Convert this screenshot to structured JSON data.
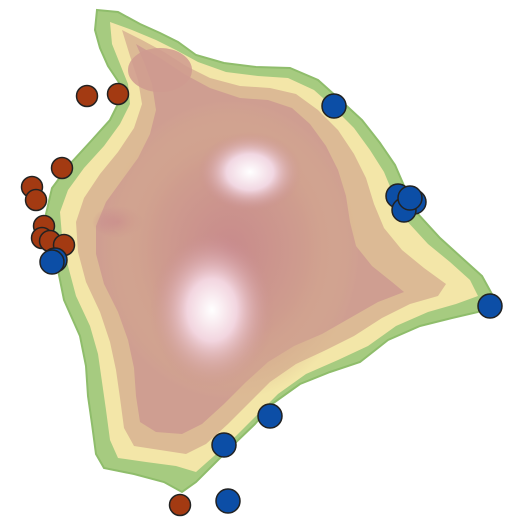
{
  "map": {
    "type": "elevation-map",
    "land_colors": {
      "coast_green": "#9cc57a",
      "low_yellow": "#f4e7a6",
      "mid_tan": "#d7b28d",
      "high_rose": "#c98c8e",
      "peak_white": "#fbf2f6"
    },
    "marker_groups": [
      {
        "group": "orange",
        "color": "#a33a12",
        "count": 10
      },
      {
        "group": "blue",
        "color": "#0c4ea6",
        "count": 11
      }
    ]
  }
}
